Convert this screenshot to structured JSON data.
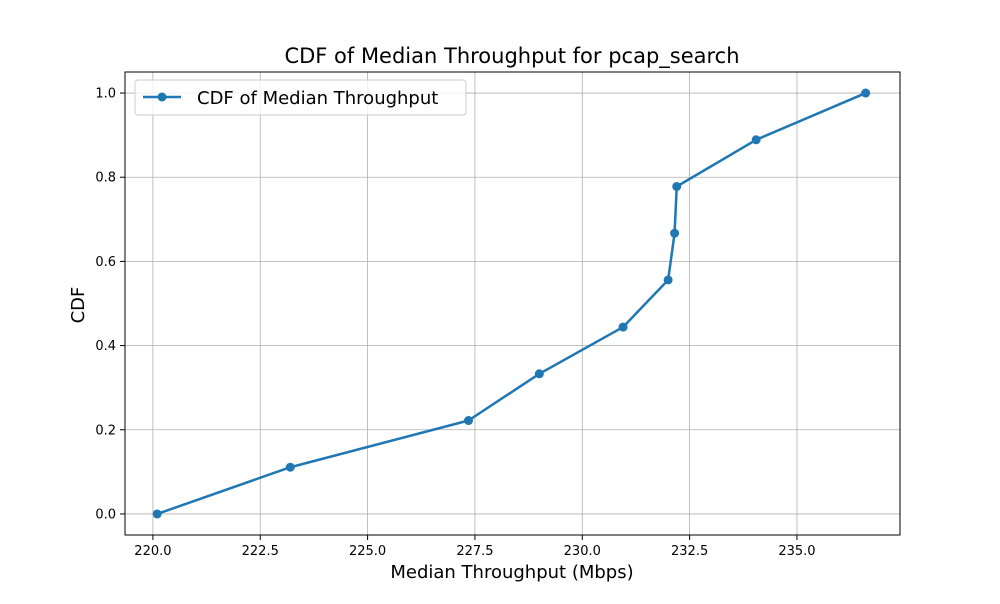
{
  "chart_data": {
    "type": "line",
    "title": "CDF of Median Throughput for pcap_search",
    "xlabel": "Median Throughput (Mbps)",
    "ylabel": "CDF",
    "xlim": [
      219.35,
      237.4
    ],
    "ylim": [
      -0.05,
      1.05
    ],
    "xticks": [
      220.0,
      222.5,
      225.0,
      227.5,
      230.0,
      232.5,
      235.0
    ],
    "xtick_labels": [
      "220.0",
      "222.5",
      "225.0",
      "227.5",
      "230.0",
      "232.5",
      "235.0"
    ],
    "yticks": [
      0.0,
      0.2,
      0.4,
      0.6,
      0.8,
      1.0
    ],
    "ytick_labels": [
      "0.0",
      "0.2",
      "0.4",
      "0.6",
      "0.8",
      "1.0"
    ],
    "grid": true,
    "legend_position": "top-left",
    "series": [
      {
        "name": "CDF of Median Throughput",
        "color": "#1f77b4",
        "marker": "circle",
        "x": [
          220.1,
          223.2,
          227.35,
          229.0,
          230.95,
          232.0,
          232.15,
          232.2,
          234.05,
          236.6
        ],
        "y": [
          0.0,
          0.111,
          0.222,
          0.333,
          0.444,
          0.556,
          0.667,
          0.778,
          0.889,
          1.0
        ]
      }
    ]
  }
}
